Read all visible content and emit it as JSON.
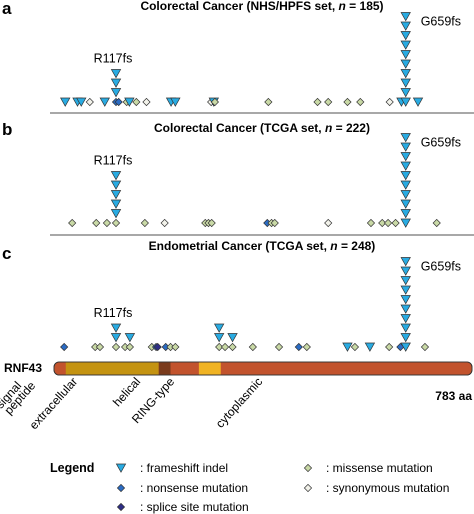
{
  "colors": {
    "frameshift": "#29abe2",
    "nonsense": "#2b6cc4",
    "splice": "#2e2e86",
    "missense": "#c9d9a6",
    "synonymous": "#f2f2ea",
    "outline": "#333333",
    "protein": "#c2532d",
    "extracellular": "#c49311",
    "helical": "#7a3b1c",
    "ring": "#f0b323",
    "divider": "#8c8c8c"
  },
  "chart_data": [
    {
      "type": "lollipop-stack",
      "panel": "a",
      "title_prefix": "Colorectal Cancer (NHS/HPFS set, ",
      "title_n": "n",
      "title_suffix": " = 185)",
      "hotspots": [
        {
          "label": "R117fs",
          "position": 117
        },
        {
          "label": "G659fs",
          "position": 659
        }
      ],
      "mutations": [
        {
          "position": 659,
          "type": "frameshift",
          "count": 10
        },
        {
          "position": 117,
          "type": "frameshift",
          "count": 3
        },
        {
          "position": 117,
          "type": "nonsense",
          "count": 1
        },
        {
          "position": 22,
          "type": "frameshift",
          "count": 1
        },
        {
          "position": 45,
          "type": "frameshift",
          "count": 1
        },
        {
          "position": 52,
          "type": "frameshift",
          "count": 1
        },
        {
          "position": 68,
          "type": "synonymous",
          "count": 1
        },
        {
          "position": 96,
          "type": "frameshift",
          "count": 1
        },
        {
          "position": 122,
          "type": "nonsense",
          "count": 1
        },
        {
          "position": 137,
          "type": "missense",
          "count": 1
        },
        {
          "position": 142,
          "type": "frameshift",
          "count": 1
        },
        {
          "position": 155,
          "type": "missense",
          "count": 1
        },
        {
          "position": 174,
          "type": "synonymous",
          "count": 1
        },
        {
          "position": 220,
          "type": "frameshift",
          "count": 1
        },
        {
          "position": 228,
          "type": "frameshift",
          "count": 1
        },
        {
          "position": 295,
          "type": "synonymous",
          "count": 1
        },
        {
          "position": 300,
          "type": "frameshift",
          "count": 1
        },
        {
          "position": 302,
          "type": "missense",
          "count": 1
        },
        {
          "position": 402,
          "type": "missense",
          "count": 1
        },
        {
          "position": 494,
          "type": "missense",
          "count": 1
        },
        {
          "position": 514,
          "type": "missense",
          "count": 1
        },
        {
          "position": 550,
          "type": "missense",
          "count": 1
        },
        {
          "position": 574,
          "type": "missense",
          "count": 1
        },
        {
          "position": 629,
          "type": "synonymous",
          "count": 1
        },
        {
          "position": 651,
          "type": "frameshift",
          "count": 1
        },
        {
          "position": 682,
          "type": "frameshift",
          "count": 1
        }
      ]
    },
    {
      "type": "lollipop-stack",
      "panel": "b",
      "title_prefix": "Colorectal Cancer (TCGA set, ",
      "title_n": "n",
      "title_suffix": " = 222)",
      "hotspots": [
        {
          "label": "R117fs",
          "position": 117
        },
        {
          "label": "G659fs",
          "position": 659
        }
      ],
      "mutations": [
        {
          "position": 659,
          "type": "frameshift",
          "count": 10
        },
        {
          "position": 117,
          "type": "frameshift",
          "count": 5
        },
        {
          "position": 117,
          "type": "missense",
          "count": 1
        },
        {
          "position": 35,
          "type": "missense",
          "count": 1
        },
        {
          "position": 80,
          "type": "missense",
          "count": 1
        },
        {
          "position": 100,
          "type": "missense",
          "count": 1
        },
        {
          "position": 171,
          "type": "missense",
          "count": 1
        },
        {
          "position": 208,
          "type": "synonymous",
          "count": 1
        },
        {
          "position": 284,
          "type": "missense",
          "count": 1
        },
        {
          "position": 290,
          "type": "missense",
          "count": 1
        },
        {
          "position": 296,
          "type": "missense",
          "count": 1
        },
        {
          "position": 400,
          "type": "nonsense",
          "count": 1
        },
        {
          "position": 408,
          "type": "missense",
          "count": 1
        },
        {
          "position": 414,
          "type": "missense",
          "count": 1
        },
        {
          "position": 514,
          "type": "synonymous",
          "count": 1
        },
        {
          "position": 594,
          "type": "missense",
          "count": 1
        },
        {
          "position": 615,
          "type": "missense",
          "count": 1
        },
        {
          "position": 626,
          "type": "missense",
          "count": 1
        },
        {
          "position": 640,
          "type": "missense",
          "count": 1
        },
        {
          "position": 717,
          "type": "missense",
          "count": 1
        }
      ]
    },
    {
      "type": "lollipop-stack",
      "panel": "c",
      "title_prefix": "Endometrial Cancer (TCGA set, ",
      "title_n": "n",
      "title_suffix": " = 248)",
      "hotspots": [
        {
          "label": "R117fs",
          "position": 117
        },
        {
          "label": "G659fs",
          "position": 659
        }
      ],
      "mutations": [
        {
          "position": 659,
          "type": "frameshift",
          "count": 10
        },
        {
          "position": 117,
          "type": "frameshift",
          "count": 2
        },
        {
          "position": 117,
          "type": "missense",
          "count": 1
        },
        {
          "position": 20,
          "type": "nonsense",
          "count": 1
        },
        {
          "position": 78,
          "type": "missense",
          "count": 1
        },
        {
          "position": 87,
          "type": "missense",
          "count": 1
        },
        {
          "position": 134,
          "type": "missense",
          "count": 1
        },
        {
          "position": 143,
          "type": "frameshift",
          "count": 1
        },
        {
          "position": 143,
          "type": "missense",
          "count": 1
        },
        {
          "position": 184,
          "type": "missense",
          "count": 1
        },
        {
          "position": 192,
          "type": "nonsense",
          "count": 1
        },
        {
          "position": 195,
          "type": "splice",
          "count": 1
        },
        {
          "position": 210,
          "type": "nonsense",
          "count": 1
        },
        {
          "position": 219,
          "type": "missense",
          "count": 1
        },
        {
          "position": 228,
          "type": "missense",
          "count": 1
        },
        {
          "position": 310,
          "type": "frameshift",
          "count": 2
        },
        {
          "position": 310,
          "type": "missense",
          "count": 1
        },
        {
          "position": 321,
          "type": "missense",
          "count": 1
        },
        {
          "position": 335,
          "type": "frameshift",
          "count": 1
        },
        {
          "position": 335,
          "type": "missense",
          "count": 1
        },
        {
          "position": 373,
          "type": "missense",
          "count": 1
        },
        {
          "position": 422,
          "type": "missense",
          "count": 1
        },
        {
          "position": 459,
          "type": "nonsense",
          "count": 1
        },
        {
          "position": 474,
          "type": "missense",
          "count": 1
        },
        {
          "position": 550,
          "type": "frameshift",
          "count": 1
        },
        {
          "position": 564,
          "type": "missense",
          "count": 1
        },
        {
          "position": 592,
          "type": "frameshift",
          "count": 1
        },
        {
          "position": 628,
          "type": "missense",
          "count": 1
        },
        {
          "position": 649,
          "type": "nonsense",
          "count": 1
        },
        {
          "position": 695,
          "type": "missense",
          "count": 1
        }
      ]
    }
  ],
  "protein": {
    "name": "RNF43",
    "length": 783,
    "length_label": "783 aa",
    "domains": [
      {
        "label": "signal\npeptide",
        "start": 1,
        "end": 23,
        "color_key": "protein"
      },
      {
        "label": "extracellular",
        "start": 23,
        "end": 197,
        "color_key": "extracellular"
      },
      {
        "label": "helical",
        "start": 197,
        "end": 219,
        "color_key": "helical"
      },
      {
        "label": "RING-type",
        "start": 272,
        "end": 313,
        "color_key": "ring"
      },
      {
        "label": "cytoplasmic",
        "start": 219,
        "end": 783,
        "color_key": "protein"
      }
    ]
  },
  "legend": {
    "title": "Legend",
    "items": [
      {
        "type": "frameshift",
        "label": ": frameshift indel"
      },
      {
        "type": "nonsense",
        "label": ": nonsense mutation"
      },
      {
        "type": "splice",
        "label": ": splice site mutation"
      },
      {
        "type": "missense",
        "label": ": missense mutation"
      },
      {
        "type": "synonymous",
        "label": ": synonymous mutation"
      }
    ]
  }
}
